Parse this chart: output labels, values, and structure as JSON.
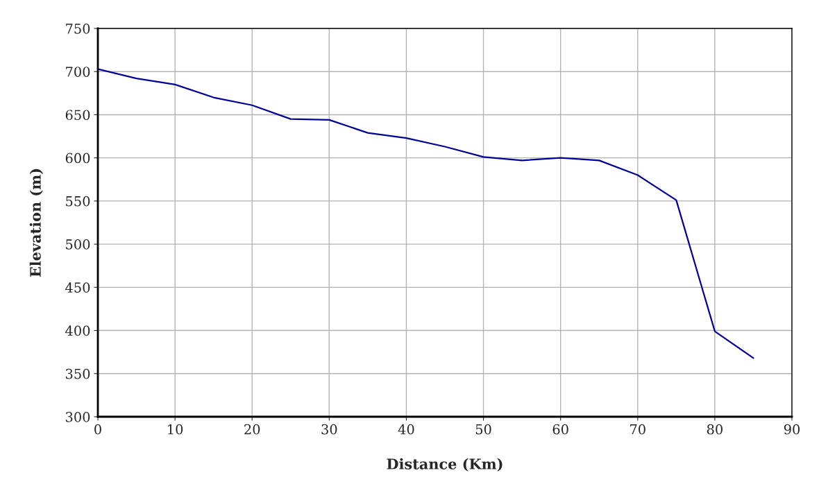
{
  "chart_data": {
    "type": "line",
    "xlabel": "Distance (Km)",
    "ylabel": "Elevation (m)",
    "x": [
      0,
      5,
      10,
      15,
      20,
      25,
      30,
      35,
      40,
      45,
      50,
      55,
      60,
      65,
      70,
      75,
      80,
      85
    ],
    "series": [
      {
        "color": "#000099",
        "values": [
          703,
          692,
          685,
          670,
          661,
          645,
          644,
          629,
          623,
          613,
          601,
          597,
          600,
          597,
          580,
          551,
          399,
          368
        ]
      }
    ],
    "xlim": [
      0,
      90
    ],
    "xticks": [
      0,
      10,
      20,
      30,
      40,
      50,
      60,
      70,
      80,
      90
    ],
    "ylim": [
      300,
      750
    ],
    "yticks": [
      300,
      350,
      400,
      450,
      500,
      550,
      600,
      650,
      700,
      750
    ],
    "grid": true,
    "marker": "none",
    "line_style": "solid"
  }
}
